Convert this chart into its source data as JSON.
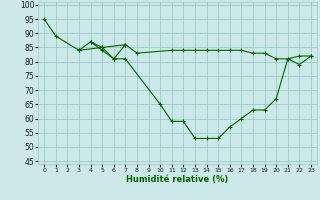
{
  "bg_color": "#cce8e8",
  "grid_color": "#99cccc",
  "line_color": "#006600",
  "marker": "+",
  "xlabel": "Humidité relative (%)",
  "xlim": [
    -0.5,
    23.5
  ],
  "ylim": [
    44,
    101
  ],
  "yticks": [
    45,
    50,
    55,
    60,
    65,
    70,
    75,
    80,
    85,
    90,
    95,
    100
  ],
  "xticks": [
    0,
    1,
    2,
    3,
    4,
    5,
    6,
    7,
    8,
    9,
    10,
    11,
    12,
    13,
    14,
    15,
    16,
    17,
    18,
    19,
    20,
    21,
    22,
    23
  ],
  "series": [
    {
      "x": [
        0,
        1,
        3,
        4,
        5,
        6,
        7,
        10,
        11,
        12,
        13,
        14,
        15,
        16,
        17,
        18,
        19,
        20,
        21,
        22,
        23
      ],
      "y": [
        95,
        89,
        84,
        87,
        84,
        81,
        81,
        65,
        59,
        59,
        53,
        53,
        53,
        57,
        60,
        63,
        63,
        67,
        81,
        79,
        82
      ]
    },
    {
      "x": [
        3,
        5,
        7,
        8,
        11,
        12,
        13,
        14,
        15,
        16,
        17,
        18,
        19,
        20,
        21,
        22,
        23
      ],
      "y": [
        84,
        85,
        86,
        83,
        84,
        84,
        84,
        84,
        84,
        84,
        84,
        83,
        83,
        81,
        81,
        82,
        82
      ]
    },
    {
      "x": [
        4,
        5,
        6,
        7
      ],
      "y": [
        87,
        85,
        81,
        86
      ]
    }
  ]
}
